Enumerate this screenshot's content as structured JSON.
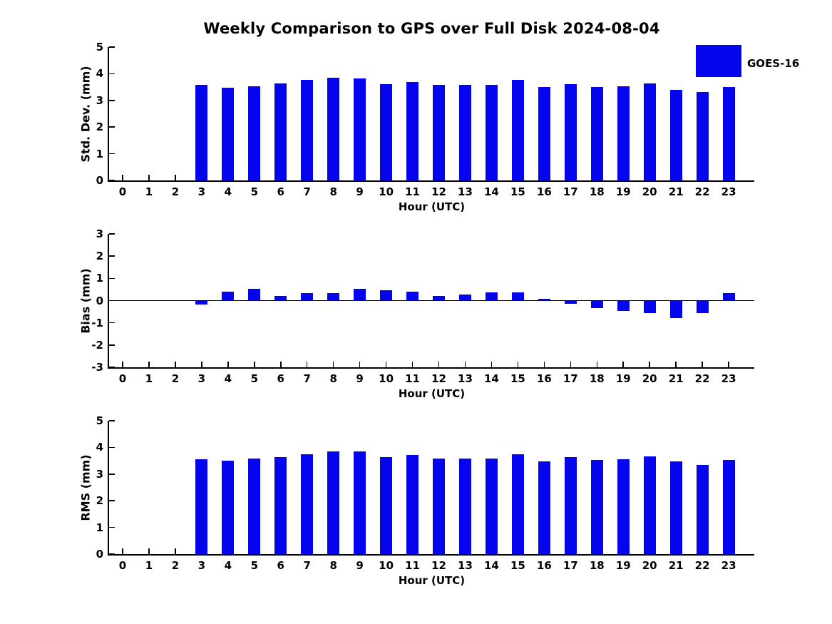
{
  "title": "Weekly Comparison to GPS over Full Disk 2024-08-04",
  "legend": {
    "label": "GOES-16",
    "color": "#0404ee",
    "position": "top-right"
  },
  "bar_color": "#0404ee",
  "axis_color": "#000000",
  "chart_data": [
    {
      "type": "bar",
      "title": "Weekly Comparison to GPS over Full Disk 2024-08-04",
      "ylabel": "Std. Dev. (mm)",
      "xlabel": "Hour (UTC)",
      "ylim": [
        0,
        5
      ],
      "yticks": [
        5,
        4,
        3,
        2,
        1,
        0
      ],
      "grid": false,
      "legend_entries": [
        "GOES-16"
      ],
      "categories": [
        "0",
        "1",
        "2",
        "3",
        "4",
        "5",
        "6",
        "7",
        "8",
        "9",
        "10",
        "11",
        "12",
        "13",
        "14",
        "15",
        "16",
        "17",
        "18",
        "19",
        "20",
        "21",
        "22",
        "23"
      ],
      "series": [
        {
          "name": "GOES-16",
          "values": [
            null,
            null,
            null,
            3.57,
            3.48,
            3.54,
            3.63,
            3.76,
            3.85,
            3.83,
            3.62,
            3.7,
            3.58,
            3.57,
            3.57,
            3.76,
            3.49,
            3.62,
            3.51,
            3.53,
            3.64,
            3.4,
            3.31,
            3.5
          ]
        }
      ]
    },
    {
      "type": "bar",
      "title": "",
      "ylabel": "Bias (mm)",
      "xlabel": "Hour (UTC)",
      "ylim": [
        -3,
        3
      ],
      "yticks": [
        3,
        2,
        1,
        0,
        -1,
        -2,
        -3
      ],
      "grid": false,
      "zero_line": true,
      "categories": [
        "0",
        "1",
        "2",
        "3",
        "4",
        "5",
        "6",
        "7",
        "8",
        "9",
        "10",
        "11",
        "12",
        "13",
        "14",
        "15",
        "16",
        "17",
        "18",
        "19",
        "20",
        "21",
        "22",
        "23"
      ],
      "series": [
        {
          "name": "GOES-16",
          "values": [
            null,
            null,
            null,
            -0.18,
            0.4,
            0.53,
            0.2,
            0.33,
            0.34,
            0.52,
            0.48,
            0.4,
            0.21,
            0.27,
            0.36,
            0.37,
            0.09,
            -0.15,
            -0.35,
            -0.48,
            -0.55,
            -0.8,
            -0.57,
            0.34
          ]
        }
      ]
    },
    {
      "type": "bar",
      "title": "",
      "ylabel": "RMS (mm)",
      "xlabel": "Hour (UTC)",
      "ylim": [
        0,
        5
      ],
      "yticks": [
        5,
        4,
        3,
        2,
        1,
        0
      ],
      "grid": false,
      "categories": [
        "0",
        "1",
        "2",
        "3",
        "4",
        "5",
        "6",
        "7",
        "8",
        "9",
        "10",
        "11",
        "12",
        "13",
        "14",
        "15",
        "16",
        "17",
        "18",
        "19",
        "20",
        "21",
        "22",
        "23"
      ],
      "series": [
        {
          "name": "GOES-16",
          "values": [
            null,
            null,
            null,
            3.56,
            3.51,
            3.59,
            3.64,
            3.75,
            3.85,
            3.86,
            3.64,
            3.72,
            3.59,
            3.59,
            3.59,
            3.75,
            3.48,
            3.63,
            3.53,
            3.56,
            3.67,
            3.48,
            3.35,
            3.52
          ]
        }
      ]
    }
  ]
}
